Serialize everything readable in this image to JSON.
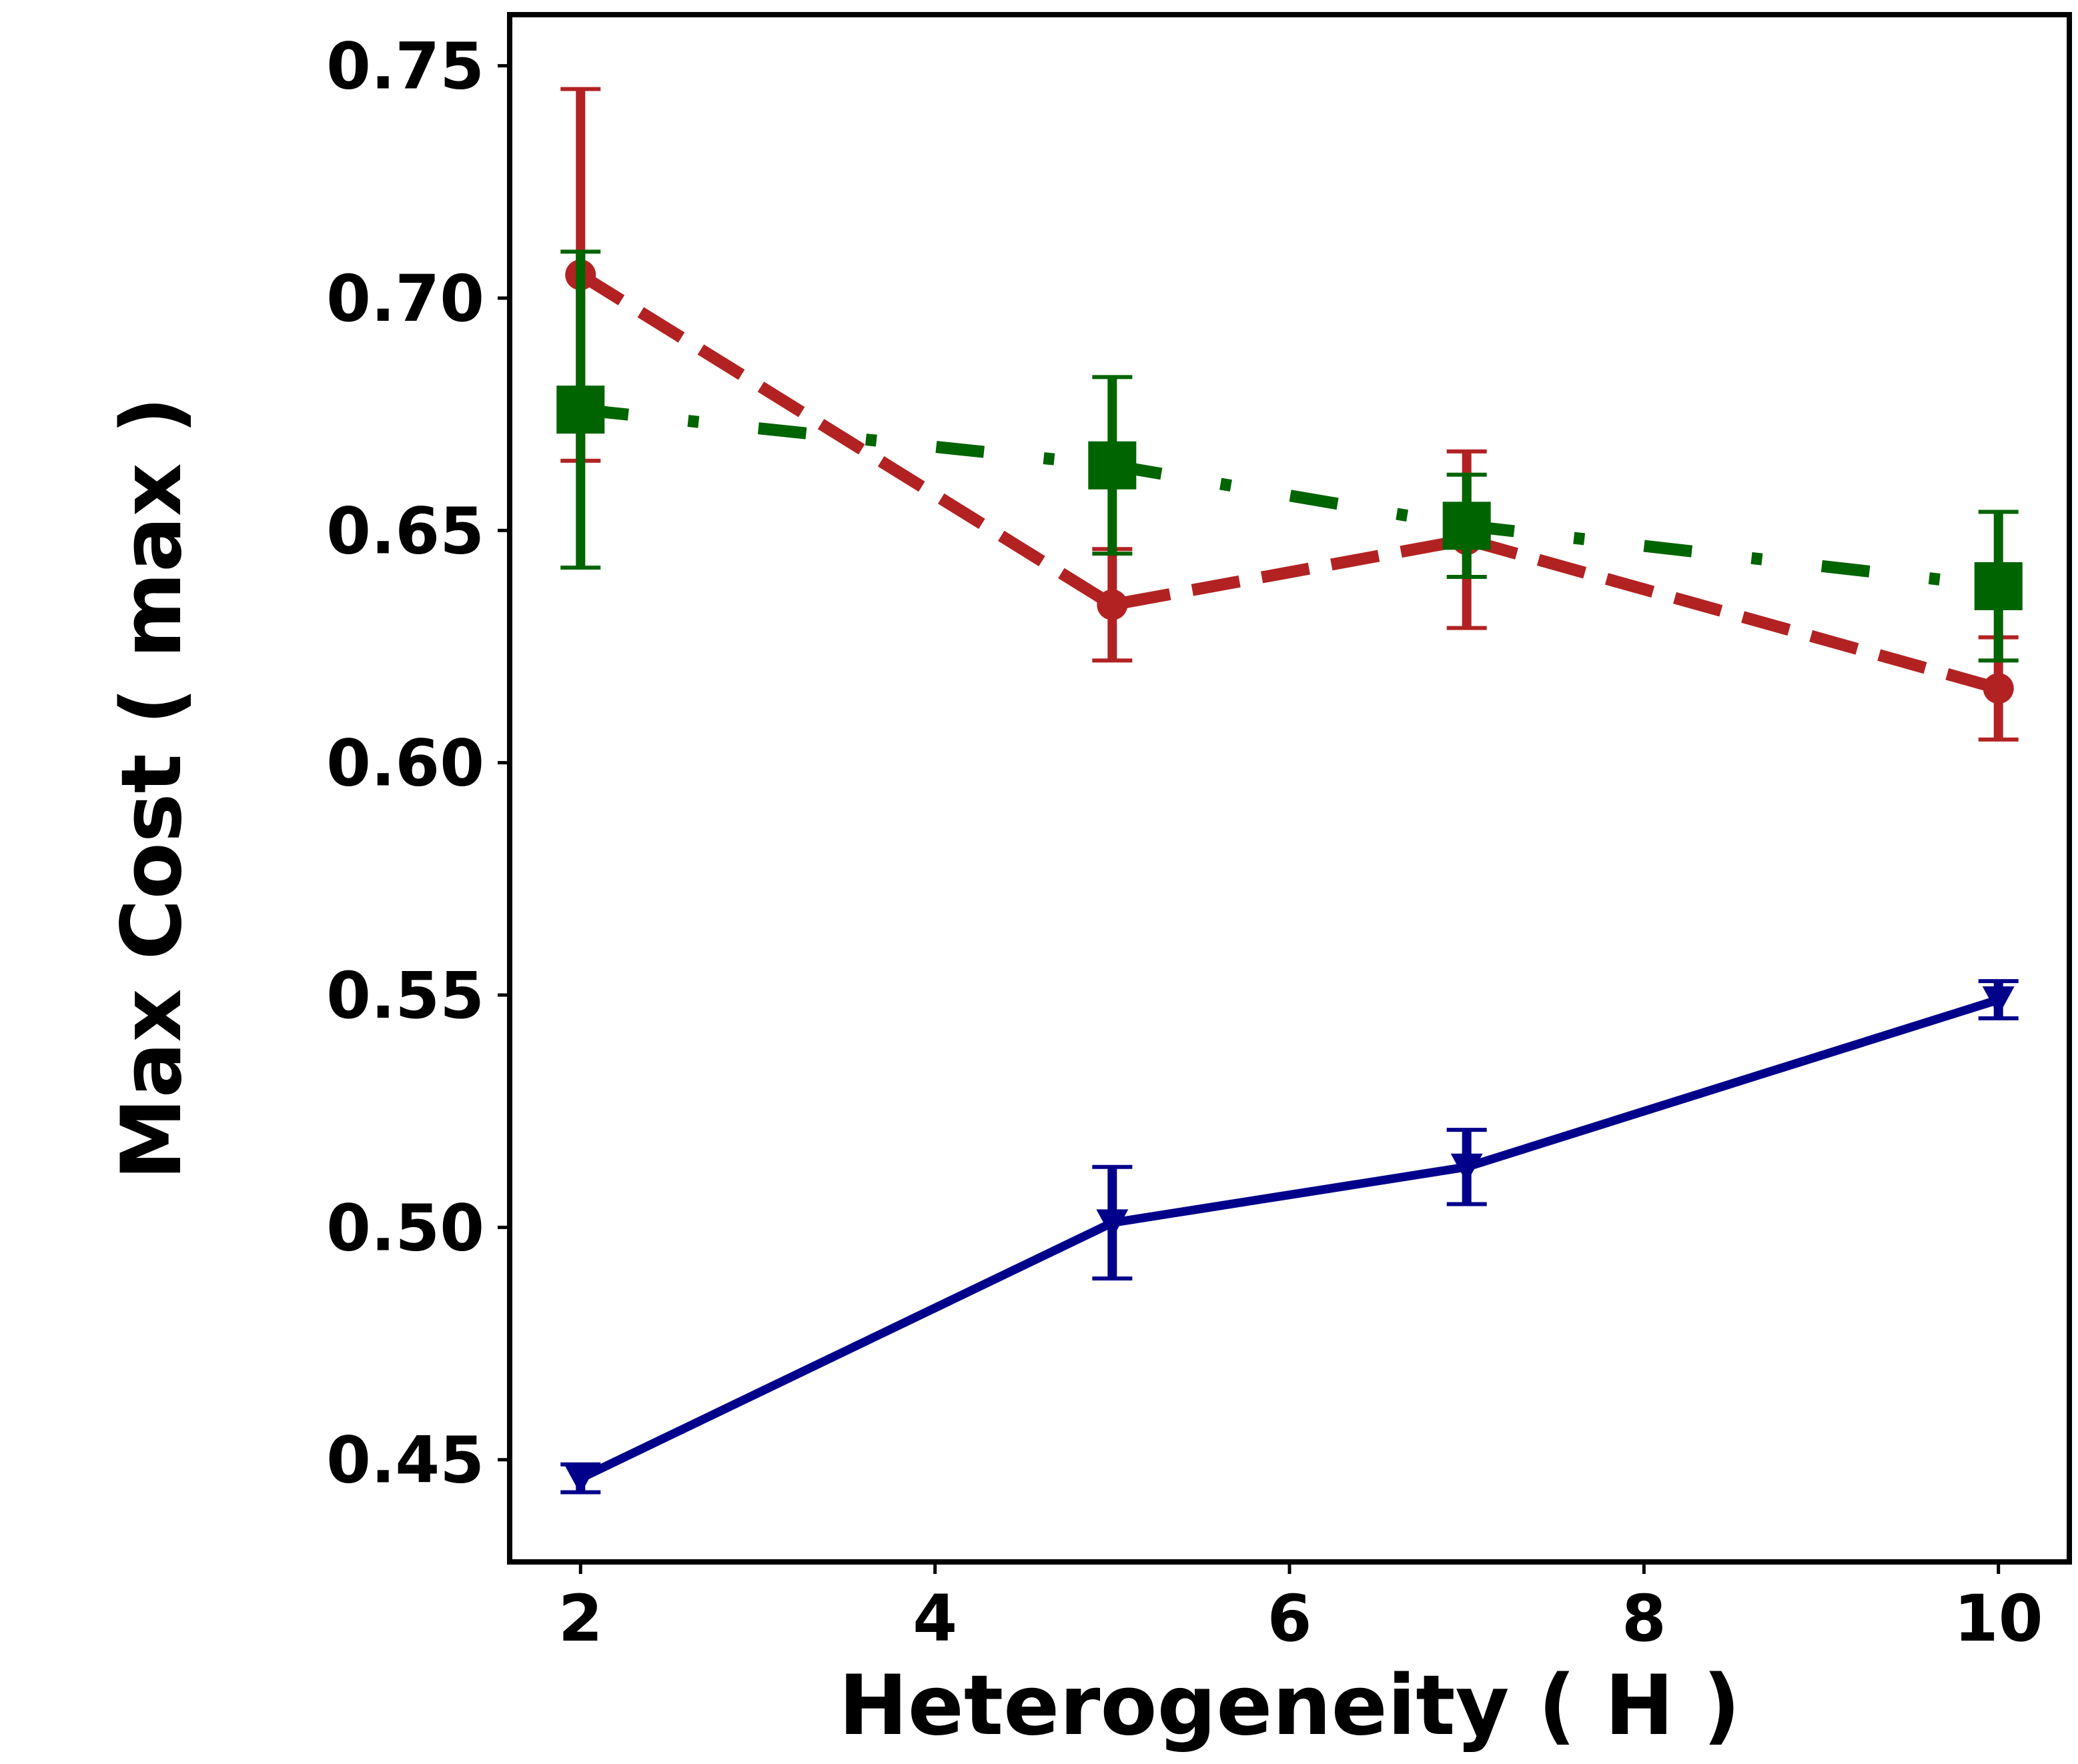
{
  "chart_data": {
    "type": "line",
    "title": "",
    "xlabel": "Heterogeneity ( H )",
    "ylabel": "Max Cost ( max  )",
    "xlim": [
      1.6,
      10.4
    ],
    "ylim": [
      0.428,
      0.761
    ],
    "xticks": [
      2,
      4,
      6,
      8,
      10
    ],
    "yticks": [
      0.45,
      0.5,
      0.55,
      0.6,
      0.65,
      0.7,
      0.75
    ],
    "xtick_labels": [
      "2",
      "4",
      "6",
      "8",
      "10"
    ],
    "ytick_labels": [
      "0.45",
      "0.50",
      "0.55",
      "0.60",
      "0.65",
      "0.70",
      "0.75"
    ],
    "grid": false,
    "legend": "none",
    "series": [
      {
        "name": "red dashed series",
        "color": "#b22222",
        "line_style": "dashed",
        "marker": "circle",
        "x": [
          2,
          5,
          7,
          10
        ],
        "y": [
          0.705,
          0.634,
          0.648,
          0.616
        ],
        "err": [
          0.04,
          0.012,
          0.019,
          0.011
        ]
      },
      {
        "name": "green dash-dot series",
        "color": "#006400",
        "line_style": "dashdot",
        "marker": "square",
        "x": [
          2,
          5,
          7,
          10
        ],
        "y": [
          0.676,
          0.664,
          0.651,
          0.638
        ],
        "err": [
          0.034,
          0.019,
          0.011,
          0.016
        ]
      },
      {
        "name": "navy solid series",
        "color": "#00008b",
        "line_style": "solid",
        "marker": "triangle-down",
        "x": [
          2,
          5,
          7,
          10
        ],
        "y": [
          0.446,
          0.501,
          0.513,
          0.549
        ],
        "err": [
          0.003,
          0.012,
          0.008,
          0.004
        ]
      }
    ]
  }
}
